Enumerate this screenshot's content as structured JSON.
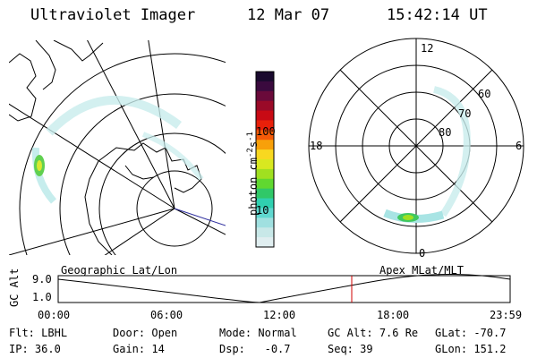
{
  "header": {
    "title": "Ultraviolet Imager",
    "date": "12 Mar 07",
    "time": "15:42:14 UT"
  },
  "colorbar": {
    "unit_label": "photon cm",
    "unit_sup1": "-2",
    "unit_s": "s",
    "unit_sup2": "-1",
    "ticks": [
      "100",
      "10"
    ],
    "colors": [
      "#1a0a2e",
      "#3a0a3e",
      "#6a0a3a",
      "#9a0a28",
      "#c80a14",
      "#e8200a",
      "#f55a08",
      "#f8a00a",
      "#f8d820",
      "#d8e820",
      "#a0e020",
      "#60d830",
      "#30c868",
      "#30d0b0",
      "#60d8d0",
      "#a0e0e0",
      "#c8e8e8",
      "#e0eef0"
    ]
  },
  "polar_plot": {
    "labels": {
      "top": "12",
      "bottom": "0",
      "left": "18",
      "right": "6"
    },
    "lat_labels": [
      "60",
      "70",
      "80"
    ]
  },
  "timeline": {
    "left_label": "Geographic Lat/Lon",
    "right_label": "Apex MLat/MLT",
    "axis_label": "GC Alt",
    "y_top": "9.0",
    "y_bottom": "1.0",
    "x_ticks": [
      "00:00",
      "06:00",
      "12:00",
      "18:00",
      "23:59"
    ],
    "current_marker_color": "#d00000"
  },
  "info": {
    "flt_label": "Flt:",
    "flt_value": "LBHL",
    "ip_label": "IP:",
    "ip_value": "36.0",
    "door_label": "Door:",
    "door_value": "Open",
    "gain_label": "Gain:",
    "gain_value": "14",
    "mode_label": "Mode:",
    "mode_value": "Normal",
    "dsp_label": "Dsp:",
    "dsp_value": "-0.7",
    "gcalt_label": "GC Alt:",
    "gcalt_value": "7.6 Re",
    "seq_label": "Seq:",
    "seq_value": "39",
    "glat_label": "GLat:",
    "glat_value": "-70.7",
    "glon_label": "GLon:",
    "glon_value": "151.2"
  }
}
